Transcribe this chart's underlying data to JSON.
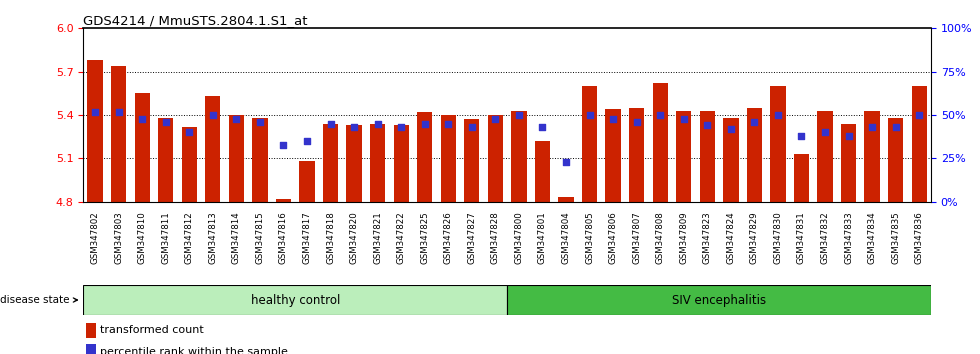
{
  "title": "GDS4214 / MmuSTS.2804.1.S1_at",
  "samples": [
    "GSM347802",
    "GSM347803",
    "GSM347810",
    "GSM347811",
    "GSM347812",
    "GSM347813",
    "GSM347814",
    "GSM347815",
    "GSM347816",
    "GSM347817",
    "GSM347818",
    "GSM347820",
    "GSM347821",
    "GSM347822",
    "GSM347825",
    "GSM347826",
    "GSM347827",
    "GSM347828",
    "GSM347800",
    "GSM347801",
    "GSM347804",
    "GSM347805",
    "GSM347806",
    "GSM347807",
    "GSM347808",
    "GSM347809",
    "GSM347823",
    "GSM347824",
    "GSM347829",
    "GSM347830",
    "GSM347831",
    "GSM347832",
    "GSM347833",
    "GSM347834",
    "GSM347835",
    "GSM347836"
  ],
  "bar_values": [
    5.78,
    5.74,
    5.55,
    5.38,
    5.32,
    5.53,
    5.4,
    5.38,
    4.82,
    5.08,
    5.34,
    5.33,
    5.34,
    5.33,
    5.42,
    5.4,
    5.37,
    5.4,
    5.43,
    5.22,
    4.83,
    5.6,
    5.44,
    5.45,
    5.62,
    5.43,
    5.43,
    5.38,
    5.45,
    5.6,
    5.13,
    5.43,
    5.34,
    5.43,
    5.38,
    5.6
  ],
  "percentile_values": [
    52,
    52,
    48,
    46,
    40,
    50,
    48,
    46,
    33,
    35,
    45,
    43,
    45,
    43,
    45,
    45,
    43,
    48,
    50,
    43,
    23,
    50,
    48,
    46,
    50,
    48,
    44,
    42,
    46,
    50,
    38,
    40,
    38,
    43,
    43,
    50
  ],
  "group_labels": [
    "healthy control",
    "SIV encephalitis"
  ],
  "n_healthy": 18,
  "n_siv": 18,
  "ylim_left": [
    4.8,
    6.0
  ],
  "ylim_right": [
    0,
    100
  ],
  "yticks_left": [
    4.8,
    5.1,
    5.4,
    5.7,
    6.0
  ],
  "yticks_right": [
    0,
    25,
    50,
    75,
    100
  ],
  "bar_color": "#CC2200",
  "blue_color": "#3333CC",
  "healthy_color": "#BBEEBB",
  "siv_color": "#44BB44",
  "disease_state_label": "disease state"
}
